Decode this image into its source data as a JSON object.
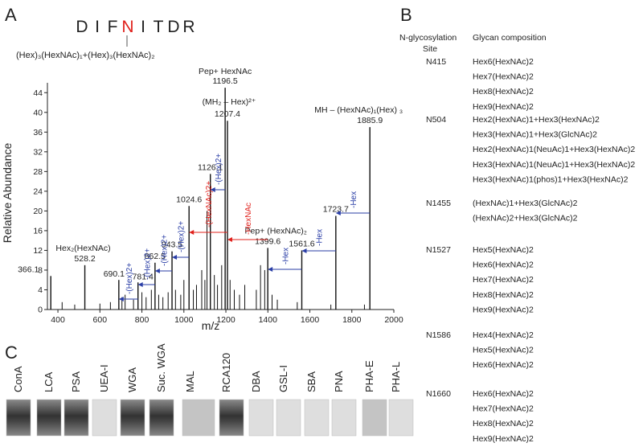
{
  "panels": [
    "A",
    "B",
    "C"
  ],
  "peptide": {
    "letters": [
      "D",
      "I",
      "F",
      "N",
      "I",
      "T",
      "D",
      "R"
    ],
    "highlight": 3,
    "highlight_color": "#e0201b",
    "composition": "(Hex)₃(HexNAc)₁+(Hex)₃(HexNAc)₂"
  },
  "chart_data": {
    "type": "spectrum",
    "xlabel": "m/z",
    "ylabel": "Relative Abundance",
    "color": "#111",
    "x": [
      366.1,
      528.2,
      690.1,
      781.4,
      862.5,
      943.5,
      1024.6,
      1126.1,
      1196.5,
      1207.4,
      1399.6,
      1561.6,
      1723.7,
      1885.9
    ],
    "values": [
      6.8,
      9,
      6,
      5.5,
      9.5,
      11.8,
      21,
      27.5,
      45,
      38.3,
      12.5,
      12,
      19,
      37
    ],
    "minor_x": [
      420,
      480,
      600,
      650,
      705,
      720,
      760,
      800,
      820,
      845,
      880,
      900,
      925,
      960,
      985,
      1000,
      1045,
      1060,
      1085,
      1100,
      1110,
      1145,
      1160,
      1180,
      1220,
      1240,
      1265,
      1290,
      1345,
      1365,
      1385,
      1420,
      1445,
      1540,
      1700,
      1860
    ],
    "minor_values": [
      1.5,
      1,
      1.2,
      1.5,
      2.5,
      3,
      2,
      3.5,
      2.5,
      4,
      3,
      2.5,
      3.5,
      4,
      3,
      6,
      4,
      5,
      8,
      6,
      20,
      7,
      5,
      9,
      6,
      4,
      3,
      5,
      4,
      9,
      8,
      3,
      2,
      1.5,
      1,
      1
    ],
    "xlim": [
      350,
      2000
    ],
    "xticks": [
      400,
      600,
      800,
      1000,
      1200,
      1400,
      1600,
      1800,
      2000
    ],
    "ylim": [
      0,
      46
    ],
    "yticks": [
      0,
      4,
      8,
      12,
      16,
      20,
      24,
      28,
      32,
      36,
      40,
      44
    ],
    "annotations": [
      "Hex₂(HexNAc)",
      "Pep+ HexNAc",
      "(MH₂ – Hex)²⁺",
      "Pep+ (HexNAc)₂",
      "MH – (HexNAc)₁(Hex) ₃"
    ],
    "arrows": [
      {
        "label": "-Hex",
        "color": "#2a3ea6"
      },
      {
        "label": "-Hex",
        "color": "#2a3ea6"
      },
      {
        "label": "-Hex",
        "color": "#2a3ea6"
      },
      {
        "label": "-HexNAc",
        "color": "#e0201b"
      },
      {
        "label": "-(HexNAc)2+",
        "color": "#e0201b"
      },
      {
        "label": "-(Hex)2+",
        "color": "#2a3ea6"
      },
      {
        "label": "-(Hex)2+",
        "color": "#2a3ea6"
      },
      {
        "label": "-(Hex)2+",
        "color": "#2a3ea6"
      },
      {
        "label": "-(Hex)2+",
        "color": "#2a3ea6"
      },
      {
        "label": "-(Hex)2+",
        "color": "#2a3ea6"
      }
    ]
  },
  "table": {
    "header_site": [
      "N-glycosylation",
      "Site"
    ],
    "header_glycan": "Glycan composition",
    "groups": [
      {
        "site": "N415",
        "glycans": [
          "Hex6(HexNAc)2",
          "Hex7(HexNAc)2",
          "Hex8(HexNAc)2",
          "Hex9(HexNAc)2"
        ]
      },
      {
        "site": "N504",
        "glycans": [
          "Hex2(HexNAc)1+Hex3(HexNAc)2",
          "Hex3(HexNAc)1+Hex3(GlcNAc)2",
          "Hex2(HexNAc)1(NeuAc)1+Hex3(HexNAc)2",
          "Hex3(HexNAc)1(NeuAc)1+Hex3(HexNAc)2",
          "Hex3(HexNAc)1(phos)1+Hex3(HexNAc)2"
        ]
      },
      {
        "site": "N1455",
        "glycans": [
          "(HexNAc)1+Hex3(GlcNAc)2",
          "(HexNAc)2+Hex3(GlcNAc)2"
        ]
      },
      {
        "site": "N1527",
        "glycans": [
          "Hex5(HexNAc)2",
          "Hex6(HexNAc)2",
          "Hex7(HexNAc)2",
          "Hex8(HexNAc)2",
          "Hex9(HexNAc)2"
        ]
      },
      {
        "site": "N1586",
        "glycans": [
          "Hex4(HexNAc)2",
          "Hex5(HexNAc)2",
          "Hex6(HexNAc)2"
        ]
      },
      {
        "site": "N1660",
        "glycans": [
          "Hex6(HexNAc)2",
          "Hex7(HexNAc)2",
          "Hex8(HexNAc)2",
          "Hex9(HexNAc)2"
        ]
      }
    ]
  },
  "lectins": [
    "ConA",
    "LCA",
    "PSA",
    "UEA-I",
    "WGA",
    "Suc. WGA",
    "MAL",
    "RCA120",
    "DBA",
    "GSL-I",
    "SBA",
    "PNA",
    "PHA-E",
    "PHA-L"
  ]
}
